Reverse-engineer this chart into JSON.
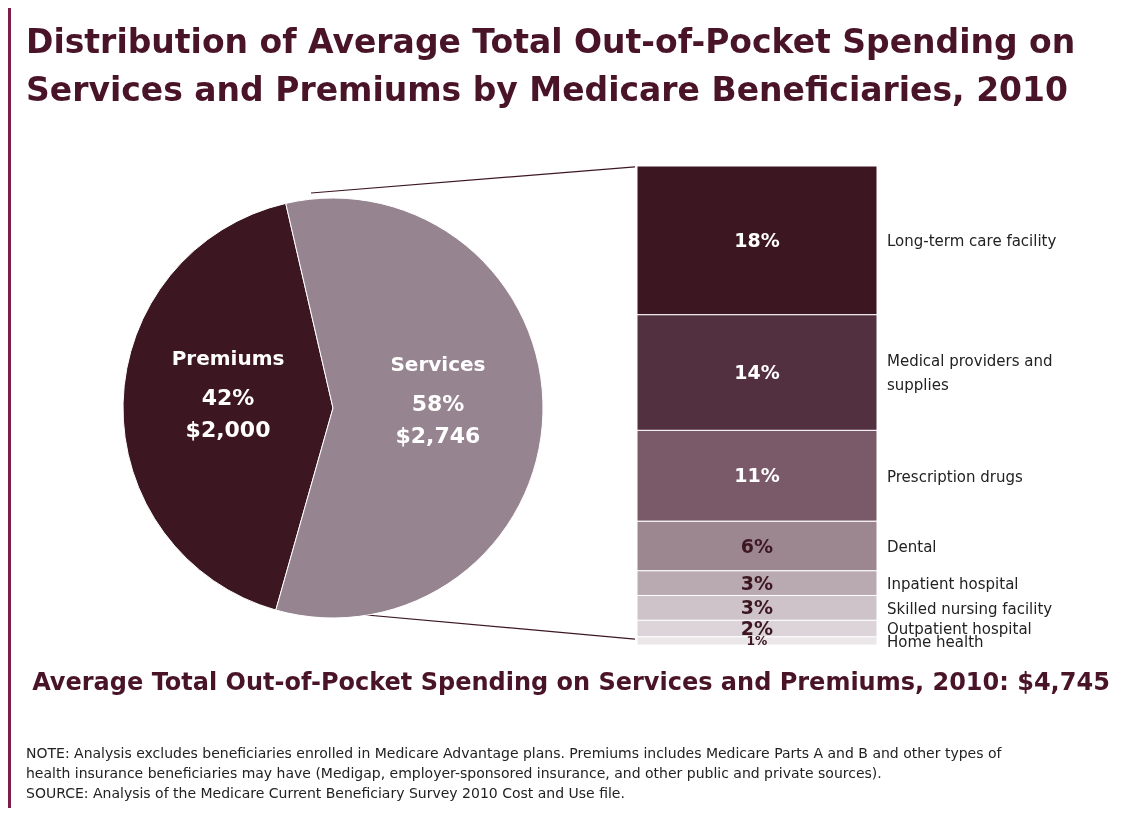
{
  "chart_data": [
    {
      "type": "pie",
      "title": "Distribution of Average Total Out-of-Pocket Spending on Services and Premiums by Medicare Beneficiaries, 2010",
      "categories": [
        "Premiums",
        "Services"
      ],
      "values": [
        42,
        58
      ],
      "colors": [
        "#3c1722",
        "#968490"
      ],
      "value_labels": [
        "42%\n$2,000",
        "58%\n$2,746"
      ],
      "legend": false,
      "annotations": [
        "Average Total Out-of-Pocket Spending on Services and Premiums, 2010:  $4,745",
        "NOTE: Analysis excludes beneficiaries enrolled in Medicare Advantage plans. Premiums includes Medicare Parts A and B and other types of health insurance beneficiaries may have (Medigap, employer-sponsored insurance, and other public and private sources).",
        "SOURCE: Analysis of the Medicare Current Beneficiary Survey 2010 Cost and Use file."
      ]
    },
    {
      "type": "bar",
      "stacked": true,
      "categories": [
        null
      ],
      "legend": false,
      "series": [
        {
          "name": "Home health",
          "color": "#ebe6e8",
          "values": [
            1
          ],
          "value_labels": [
            "1%"
          ]
        },
        {
          "name": "Outpatient hospital",
          "color": "#dcd4d8",
          "values": [
            2
          ],
          "value_labels": [
            "2%"
          ]
        },
        {
          "name": "Skilled nursing facility",
          "color": "#cdc3c8",
          "values": [
            3
          ],
          "value_labels": [
            "3%"
          ]
        },
        {
          "name": "Inpatient hospital",
          "color": "#b9a9b1",
          "values": [
            3
          ],
          "value_labels": [
            "3%"
          ]
        },
        {
          "name": "Dental",
          "color": "#9c8690",
          "values": [
            6
          ],
          "value_labels": [
            "6%"
          ]
        },
        {
          "name": "Prescription drugs",
          "color": "#7a5a68",
          "values": [
            11
          ],
          "value_labels": [
            "11%"
          ]
        },
        {
          "name": "Medical providers and supplies",
          "color": "#52303f",
          "values": [
            14
          ],
          "value_labels": [
            "14%"
          ]
        },
        {
          "name": "Long-term care facility",
          "color": "#3c1722",
          "values": [
            18
          ],
          "value_labels": [
            "18%"
          ]
        }
      ]
    }
  ]
}
